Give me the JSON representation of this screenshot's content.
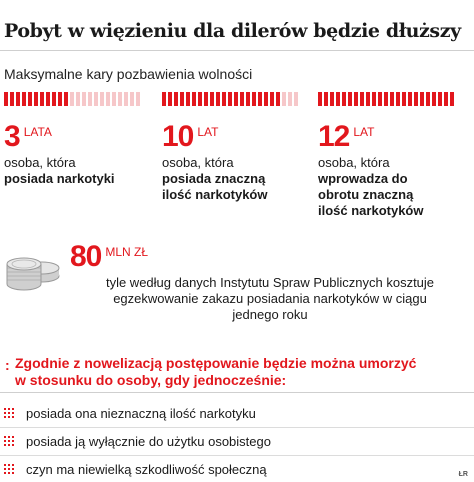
{
  "header": {
    "title": "Pobyt w więzieniu dla dilerów będzie dłuższy",
    "subtitle": "Maksymalne kary pozbawienia wolności"
  },
  "penalties": [
    {
      "years": "3",
      "unit": "LATA",
      "plain": "osoba, która",
      "bold": [
        "posiada narkotyki"
      ],
      "level_filled_segments": 11,
      "level_total_segments": 23
    },
    {
      "years": "10",
      "unit": "LAT",
      "plain": "osoba, która",
      "bold": [
        "posiada znaczną",
        "ilość narkotyków"
      ],
      "level_filled_segments": 20,
      "level_total_segments": 23
    },
    {
      "years": "12",
      "unit": "LAT",
      "plain": "osoba, która",
      "bold": [
        "wprowadza do",
        "obrotu znaczną",
        "ilość narkotyków"
      ],
      "level_filled_segments": 23,
      "level_total_segments": 23
    }
  ],
  "cost": {
    "value": "80",
    "unit": "MLN ZŁ",
    "lines": [
      "tyle według danych Instytutu Spraw Publicznych kosztuje",
      "egzekwowanie zakazu posiadania narkotyków w ciągu",
      "jednego roku"
    ]
  },
  "note": {
    "marker": ":",
    "line1": "Zgodnie z nowelizacją postępowanie będzie można umorzyć",
    "line2": "w stosunku do osoby, gdy jednocześnie:"
  },
  "conditions": [
    "posiada ona nieznaczną ilość narkotyku",
    "posiada ją wyłącznie do użytku osobistego",
    "czyn ma niewielką szkodliwość społeczną"
  ],
  "credit": "ŁR",
  "colors": {
    "accent": "#e2171d",
    "accent_light": "#f6c7c9",
    "text": "#1a1a1a"
  }
}
